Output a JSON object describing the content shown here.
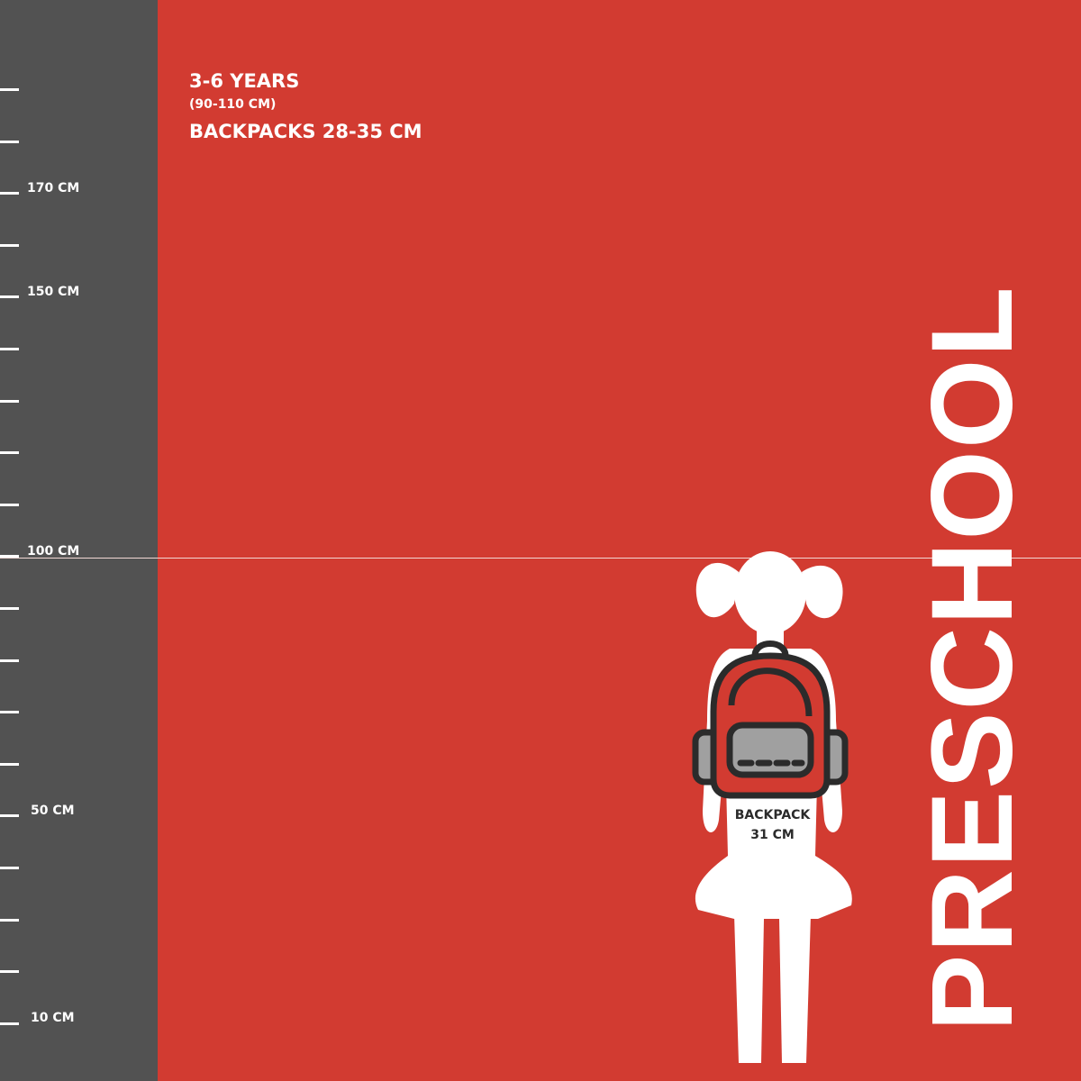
{
  "ruler": {
    "labels": {
      "l170": "170 CM",
      "l150": "150 CM",
      "l100": "100 CM",
      "l50": "50 CM",
      "l10": "10 CM"
    }
  },
  "header": {
    "age": "3-6 YEARS",
    "height_range": "(90-110 CM)",
    "backpacks": "BACKPACKS 28-35 CM"
  },
  "title": "PRESCHOOL",
  "figure": {
    "backpack_label": "BACKPACK",
    "backpack_size": "31 CM"
  },
  "colors": {
    "background": "#d23b31",
    "ruler": "#525252",
    "text": "#ffffff",
    "backpack_outline": "#2b2b2b",
    "backpack_pocket": "#a0a0a0"
  }
}
